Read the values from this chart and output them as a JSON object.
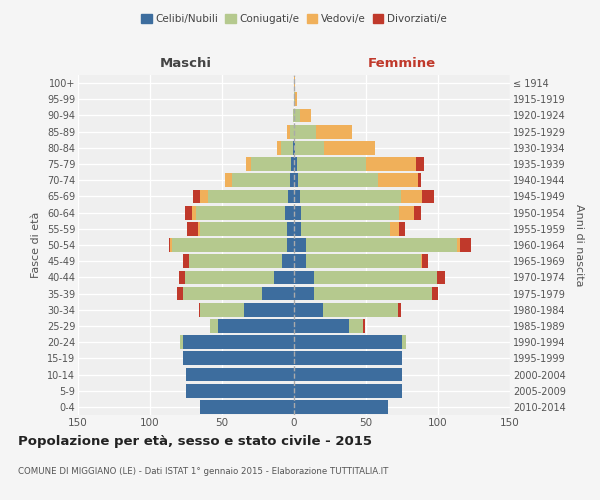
{
  "age_groups": [
    "100+",
    "95-99",
    "90-94",
    "85-89",
    "80-84",
    "75-79",
    "70-74",
    "65-69",
    "60-64",
    "55-59",
    "50-54",
    "45-49",
    "40-44",
    "35-39",
    "30-34",
    "25-29",
    "20-24",
    "15-19",
    "10-14",
    "5-9",
    "0-4"
  ],
  "birth_years": [
    "≤ 1914",
    "1915-1919",
    "1920-1924",
    "1925-1929",
    "1930-1934",
    "1935-1939",
    "1940-1944",
    "1945-1949",
    "1950-1954",
    "1955-1959",
    "1960-1964",
    "1965-1969",
    "1970-1974",
    "1975-1979",
    "1980-1984",
    "1985-1989",
    "1990-1994",
    "1995-1999",
    "2000-2004",
    "2005-2009",
    "2010-2014"
  ],
  "colors": {
    "celibe": "#3d6d9e",
    "coniugato": "#b5c98e",
    "vedovo": "#f0b05a",
    "divorziato": "#c0392b"
  },
  "maschi": {
    "celibe": [
      0,
      0,
      0,
      0,
      1,
      2,
      3,
      4,
      6,
      5,
      5,
      8,
      14,
      22,
      35,
      53,
      77,
      77,
      75,
      75,
      65
    ],
    "coniugato": [
      0,
      0,
      1,
      3,
      8,
      28,
      40,
      56,
      62,
      60,
      80,
      65,
      62,
      55,
      30,
      5,
      2,
      0,
      0,
      0,
      0
    ],
    "vedovo": [
      0,
      0,
      0,
      2,
      3,
      3,
      5,
      5,
      3,
      2,
      1,
      0,
      0,
      0,
      0,
      0,
      0,
      0,
      0,
      0,
      0
    ],
    "divorziato": [
      0,
      0,
      0,
      0,
      0,
      0,
      0,
      5,
      5,
      7,
      1,
      4,
      4,
      4,
      1,
      0,
      0,
      0,
      0,
      0,
      0
    ]
  },
  "femmine": {
    "celibe": [
      0,
      0,
      0,
      0,
      1,
      2,
      3,
      4,
      5,
      5,
      8,
      8,
      14,
      14,
      20,
      38,
      75,
      75,
      75,
      75,
      65
    ],
    "coniugato": [
      0,
      1,
      4,
      15,
      20,
      48,
      55,
      70,
      68,
      62,
      105,
      80,
      85,
      82,
      52,
      10,
      3,
      0,
      0,
      0,
      0
    ],
    "vedovo": [
      1,
      1,
      8,
      25,
      35,
      35,
      28,
      15,
      10,
      6,
      2,
      1,
      0,
      0,
      0,
      0,
      0,
      0,
      0,
      0,
      0
    ],
    "divorziato": [
      0,
      0,
      0,
      0,
      0,
      5,
      2,
      8,
      5,
      4,
      8,
      4,
      6,
      4,
      2,
      1,
      0,
      0,
      0,
      0,
      0
    ]
  },
  "title": "Popolazione per età, sesso e stato civile - 2015",
  "subtitle": "COMUNE DI MIGGIANO (LE) - Dati ISTAT 1° gennaio 2015 - Elaborazione TUTTITALIA.IT",
  "xlabel_left": "Maschi",
  "xlabel_right": "Femmine",
  "ylabel_left": "Fasce di età",
  "ylabel_right": "Anni di nascita",
  "xlim": 150,
  "legend_labels": [
    "Celibi/Nubili",
    "Coniugati/e",
    "Vedovi/e",
    "Divorziati/e"
  ],
  "bg_color": "#f5f5f5",
  "plot_bg": "#efefef"
}
